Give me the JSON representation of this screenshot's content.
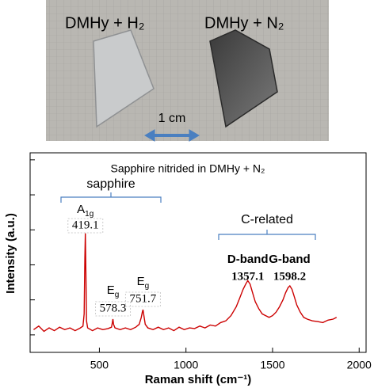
{
  "photo": {
    "labels": [
      "DMHy + H₂",
      "DMHy + N₂"
    ],
    "scale": "1 cm"
  },
  "chart_data": {
    "type": "line",
    "title": "Sapphire nitrided in DMHy + N₂",
    "x_label": "Raman shift (cm⁻¹)",
    "y_label": "Intensity (a.u.)",
    "x": [
      120,
      150,
      180,
      210,
      240,
      270,
      300,
      330,
      360,
      390,
      405,
      412,
      416,
      419,
      422,
      426,
      432,
      460,
      490,
      520,
      550,
      570,
      575,
      578,
      582,
      590,
      620,
      650,
      680,
      710,
      730,
      742,
      748,
      752,
      757,
      765,
      780,
      810,
      840,
      870,
      900,
      930,
      960,
      990,
      1020,
      1050,
      1080,
      1110,
      1140,
      1170,
      1200,
      1230,
      1260,
      1290,
      1310,
      1330,
      1345,
      1357,
      1370,
      1385,
      1400,
      1420,
      1440,
      1460,
      1480,
      1500,
      1520,
      1540,
      1560,
      1575,
      1590,
      1600,
      1612,
      1625,
      1640,
      1660,
      1680,
      1700,
      1730,
      1760,
      1790,
      1820,
      1850,
      1870
    ],
    "series": [
      {
        "color": "#cc0000",
        "values": [
          0.15,
          0.25,
          0.1,
          0.2,
          0.12,
          0.22,
          0.15,
          0.2,
          0.12,
          0.2,
          0.25,
          0.6,
          2.2,
          2.9,
          1.8,
          0.4,
          0.2,
          0.12,
          0.2,
          0.15,
          0.18,
          0.22,
          0.35,
          0.45,
          0.3,
          0.2,
          0.15,
          0.2,
          0.15,
          0.22,
          0.3,
          0.5,
          0.65,
          0.72,
          0.55,
          0.3,
          0.2,
          0.15,
          0.22,
          0.15,
          0.2,
          0.12,
          0.22,
          0.15,
          0.2,
          0.18,
          0.25,
          0.2,
          0.28,
          0.25,
          0.35,
          0.4,
          0.55,
          0.8,
          1.05,
          1.3,
          1.45,
          1.55,
          1.45,
          1.2,
          0.95,
          0.75,
          0.6,
          0.55,
          0.5,
          0.55,
          0.65,
          0.8,
          1.0,
          1.2,
          1.35,
          1.4,
          1.3,
          1.1,
          0.85,
          0.65,
          0.5,
          0.45,
          0.4,
          0.38,
          0.35,
          0.42,
          0.45,
          0.5
        ]
      }
    ],
    "xlim": [
      100,
      2040
    ],
    "xticks": [
      500,
      1000,
      1500,
      2000
    ],
    "ylim": [
      -0.5,
      5.2
    ],
    "yticks": [
      0,
      1,
      2,
      3,
      4,
      5
    ],
    "groups": [
      "sapphire",
      "C-related"
    ],
    "peaks": [
      {
        "symbol": "A",
        "sub": "1g",
        "shift": 419.1
      },
      {
        "symbol": "E",
        "sub": "g",
        "shift": 578.3
      },
      {
        "symbol": "E",
        "sub": "g",
        "shift": 751.7
      },
      {
        "name": "D-band",
        "shift": 1357.1
      },
      {
        "name": "G-band",
        "shift": 1598.2
      }
    ]
  }
}
